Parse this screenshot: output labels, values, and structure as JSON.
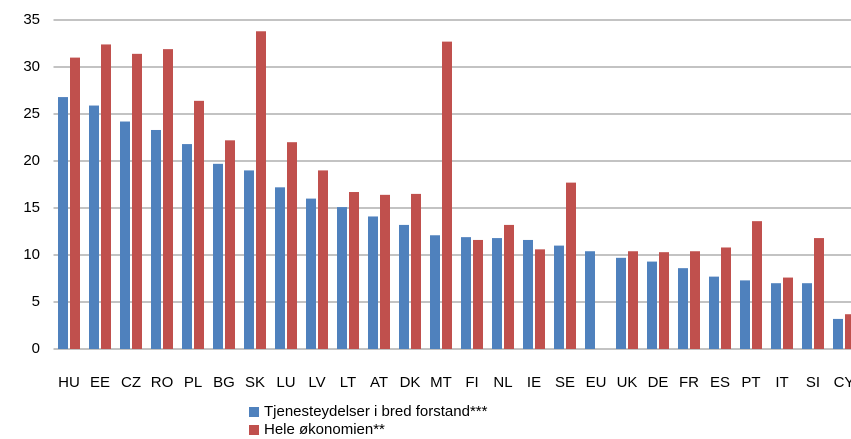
{
  "chart_data": {
    "type": "bar",
    "categories": [
      "HU",
      "EE",
      "CZ",
      "RO",
      "PL",
      "BG",
      "SK",
      "LU",
      "LV",
      "LT",
      "AT",
      "DK",
      "MT",
      "FI",
      "NL",
      "IE",
      "SE",
      "EU",
      "UK",
      "DE",
      "FR",
      "ES",
      "PT",
      "IT",
      "SI",
      "CY"
    ],
    "series": [
      {
        "name": "Tjenesteydelser i bred forstand***",
        "color": "#4f81bd",
        "values": [
          26.8,
          25.9,
          24.2,
          23.3,
          21.8,
          19.7,
          19.0,
          17.2,
          16.0,
          15.1,
          14.1,
          13.2,
          12.1,
          11.9,
          11.8,
          11.6,
          11.0,
          10.4,
          9.7,
          9.3,
          8.6,
          7.7,
          7.3,
          7.0,
          7.0,
          3.2
        ]
      },
      {
        "name": "Hele økonomien**",
        "color": "#c0504d",
        "values": [
          31.0,
          32.4,
          31.4,
          31.9,
          26.4,
          22.2,
          33.8,
          22.0,
          19.0,
          16.7,
          16.4,
          16.5,
          32.7,
          11.6,
          13.2,
          10.6,
          17.7,
          null,
          10.4,
          10.3,
          10.4,
          10.8,
          13.6,
          7.6,
          11.8,
          3.7
        ]
      }
    ],
    "ylim": [
      0,
      35
    ],
    "yticks": [
      0,
      5,
      10,
      15,
      20,
      25,
      30,
      35
    ],
    "grid": true,
    "legend": "bottom"
  }
}
